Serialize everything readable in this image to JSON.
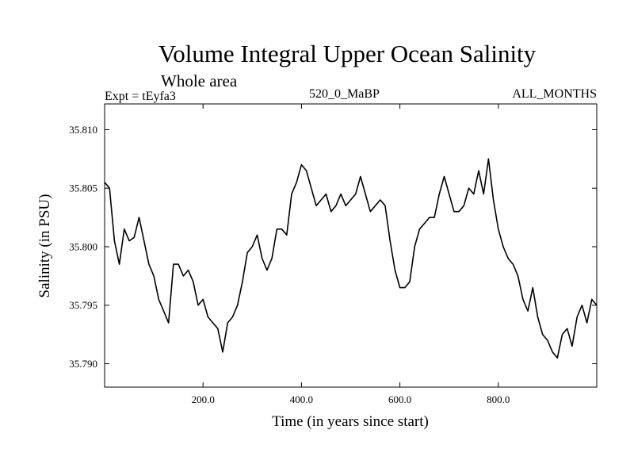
{
  "header": {
    "title": "Volume Integral Upper Ocean Salinity",
    "subtitle": "Whole area",
    "experiment": "Expt = tEyfa3",
    "run_label": "520_0_MaBP",
    "months": "ALL_MONTHS"
  },
  "chart_data": {
    "type": "line",
    "title": "Volume Integral Upper Ocean Salinity",
    "subtitle": "Whole area",
    "xlabel": "Time (in years since start)",
    "ylabel": "Salinity (in PSU)",
    "xlim": [
      0,
      1000
    ],
    "ylim": [
      35.788,
      35.8122
    ],
    "xticks": [
      200,
      400,
      600,
      800
    ],
    "xtick_labels": [
      "200.0",
      "400.0",
      "600.0",
      "800.0"
    ],
    "yticks": [
      35.79,
      35.795,
      35.8,
      35.805,
      35.81
    ],
    "ytick_labels": [
      "35.790",
      "35.795",
      "35.800",
      "35.805",
      "35.810"
    ],
    "grid": false,
    "series": [
      {
        "name": "salinity",
        "color": "#000000",
        "x": [
          0,
          10,
          20,
          30,
          40,
          50,
          60,
          70,
          80,
          90,
          100,
          110,
          120,
          130,
          140,
          150,
          160,
          170,
          180,
          190,
          200,
          210,
          220,
          230,
          240,
          250,
          260,
          270,
          280,
          290,
          300,
          310,
          320,
          330,
          340,
          350,
          360,
          370,
          380,
          390,
          400,
          410,
          420,
          430,
          440,
          450,
          460,
          470,
          480,
          490,
          500,
          510,
          520,
          530,
          540,
          550,
          560,
          570,
          580,
          590,
          600,
          610,
          620,
          630,
          640,
          650,
          660,
          670,
          680,
          690,
          700,
          710,
          720,
          730,
          740,
          750,
          760,
          770,
          780,
          790,
          800,
          810,
          820,
          830,
          840,
          850,
          860,
          870,
          880,
          890,
          900,
          910,
          920,
          930,
          940,
          950,
          960,
          970,
          980,
          990,
          1000
        ],
        "values": [
          35.8055,
          35.805,
          35.8005,
          35.7985,
          35.8015,
          35.8005,
          35.8008,
          35.8025,
          35.8005,
          35.7985,
          35.7975,
          35.7955,
          35.7945,
          35.7935,
          35.7985,
          35.7985,
          35.7975,
          35.798,
          35.797,
          35.795,
          35.7955,
          35.794,
          35.7935,
          35.793,
          35.791,
          35.7935,
          35.794,
          35.795,
          35.797,
          35.7995,
          35.8,
          35.801,
          35.799,
          35.798,
          35.799,
          35.8015,
          35.8015,
          35.801,
          35.8045,
          35.8055,
          35.807,
          35.8065,
          35.805,
          35.8035,
          35.804,
          35.8045,
          35.803,
          35.8035,
          35.8045,
          35.8035,
          35.804,
          35.8045,
          35.806,
          35.8045,
          35.803,
          35.8035,
          35.804,
          35.8035,
          35.8005,
          35.798,
          35.7965,
          35.7965,
          35.797,
          35.8,
          35.8015,
          35.802,
          35.8025,
          35.8025,
          35.8045,
          35.806,
          35.8045,
          35.803,
          35.803,
          35.8035,
          35.805,
          35.8045,
          35.8065,
          35.8045,
          35.8075,
          35.804,
          35.8015,
          35.8,
          35.799,
          35.7985,
          35.7975,
          35.7955,
          35.7945,
          35.7965,
          35.794,
          35.7925,
          35.792,
          35.791,
          35.7905,
          35.7925,
          35.793,
          35.7915,
          35.794,
          35.795,
          35.7935,
          35.7955,
          35.795
        ]
      }
    ]
  }
}
